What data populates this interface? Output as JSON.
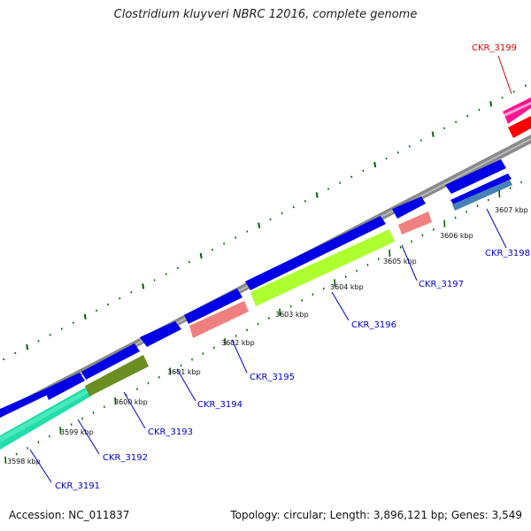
{
  "title": "Clostridium kluyveri NBRC 12016, complete genome",
  "footer": {
    "accession": "Accession: NC_011837",
    "summary": "Topology: circular; Length: 3,896,121 bp; Genes: 3,549"
  },
  "colors": {
    "backbone": "#888888",
    "forward_gene": "#0000ee",
    "label_blue": "#0000cc",
    "label_red": "#dd0000",
    "tick": "#006400"
  },
  "ticks": [
    {
      "label": "3598 kbp"
    },
    {
      "label": "3599 kbp"
    },
    {
      "label": "3600 kbp"
    },
    {
      "label": "3601 kbp"
    },
    {
      "label": "3602 kbp"
    },
    {
      "label": "3603 kbp"
    },
    {
      "label": "3604 kbp"
    },
    {
      "label": "3605 kbp"
    },
    {
      "label": "3606 kbp"
    },
    {
      "label": "3607 kbp"
    }
  ],
  "genes": [
    {
      "label": "CKR_3191",
      "color": "#0000cc"
    },
    {
      "label": "CKR_3192",
      "color": "#0000cc"
    },
    {
      "label": "CKR_3193",
      "color": "#0000cc"
    },
    {
      "label": "CKR_3194",
      "color": "#0000cc"
    },
    {
      "label": "CKR_3195",
      "color": "#0000cc"
    },
    {
      "label": "CKR_3196",
      "color": "#0000cc"
    },
    {
      "label": "CKR_3197",
      "color": "#0000cc"
    },
    {
      "label": "CKR_3198",
      "color": "#0000cc"
    },
    {
      "label": "CKR_3199",
      "color": "#dd0000"
    }
  ]
}
